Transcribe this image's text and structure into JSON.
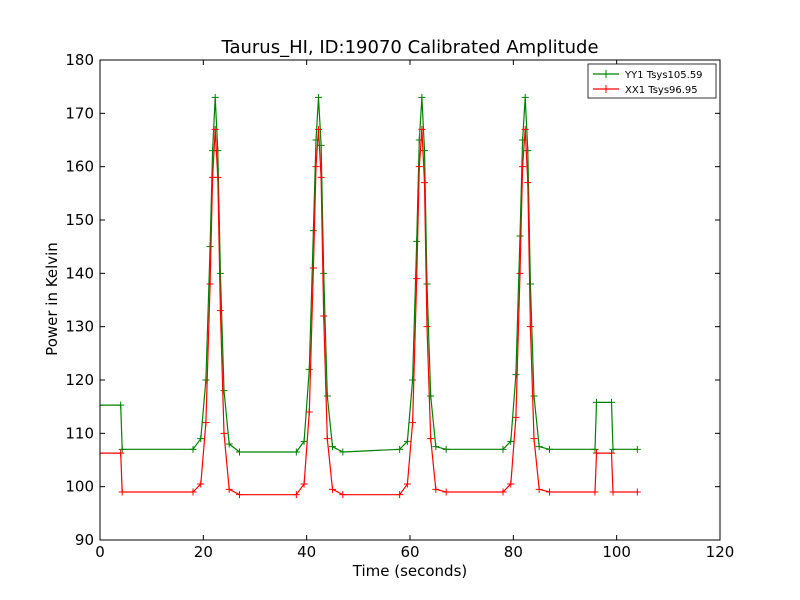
{
  "chart_data": {
    "type": "line",
    "title": "Taurus_HI, ID:19070 Calibrated Amplitude",
    "xlabel": "Time (seconds)",
    "ylabel": "Power in Kelvin",
    "xlim": [
      0,
      120
    ],
    "ylim": [
      90,
      180
    ],
    "xticks": [
      0,
      20,
      40,
      60,
      80,
      100,
      120
    ],
    "yticks": [
      90,
      100,
      110,
      120,
      130,
      140,
      150,
      160,
      170,
      180
    ],
    "grid": false,
    "legend_position": "top-right",
    "series": [
      {
        "name": "YY1 Tsys105.59",
        "color": "#008000",
        "x": [
          0,
          4,
          4.3,
          18,
          19.5,
          20.5,
          21.3,
          21.8,
          22.3,
          22.8,
          23.3,
          24,
          25,
          27,
          38,
          39.5,
          40.5,
          41.3,
          41.8,
          42.3,
          42.8,
          43.3,
          44,
          45,
          47,
          58,
          59.5,
          60.5,
          61.3,
          61.8,
          62.3,
          62.8,
          63.3,
          64,
          65,
          67,
          78,
          79.5,
          80.5,
          81.3,
          81.8,
          82.3,
          82.8,
          83.3,
          84,
          85,
          87,
          95.8,
          96.1,
          99,
          99.3,
          104
        ],
        "y": [
          115.3,
          115.3,
          107,
          107,
          109,
          120,
          145,
          163,
          173,
          163,
          140,
          118,
          108,
          106.5,
          106.5,
          108.5,
          122,
          148,
          165,
          173,
          164,
          140,
          117,
          107.5,
          106.5,
          107,
          108.5,
          120,
          146,
          165,
          173,
          163,
          138,
          117,
          107.5,
          107,
          107,
          108.5,
          121,
          147,
          165,
          173,
          163,
          138,
          117,
          107.5,
          107,
          107,
          115.8,
          115.8,
          107,
          107
        ]
      },
      {
        "name": "XX1 Tsys96.95",
        "color": "#ff0000",
        "x": [
          0,
          4,
          4.3,
          18,
          19.5,
          20.5,
          21.3,
          21.8,
          22.3,
          22.8,
          23.3,
          24,
          25,
          27,
          38,
          39.5,
          40.5,
          41.3,
          41.8,
          42.3,
          42.8,
          43.3,
          44,
          45,
          47,
          58,
          59.5,
          60.5,
          61.3,
          61.8,
          62.3,
          62.8,
          63.3,
          64,
          65,
          67,
          78,
          79.5,
          80.5,
          81.3,
          81.8,
          82.3,
          82.8,
          83.3,
          84,
          85,
          87,
          95.8,
          96.1,
          99,
          99.3,
          104
        ],
        "y": [
          106.3,
          106.3,
          99,
          99,
          100.5,
          112,
          138,
          158,
          167,
          158,
          133,
          110,
          99.5,
          98.5,
          98.5,
          100.5,
          114,
          141,
          160,
          167,
          158,
          132,
          109,
          99.5,
          98.5,
          98.5,
          100.5,
          112,
          139,
          160,
          167,
          157,
          130,
          109,
          99.5,
          99,
          99,
          100.5,
          113,
          140,
          160,
          167,
          157,
          130,
          109,
          99.5,
          99,
          99,
          106.3,
          106.3,
          99,
          99
        ]
      }
    ]
  }
}
